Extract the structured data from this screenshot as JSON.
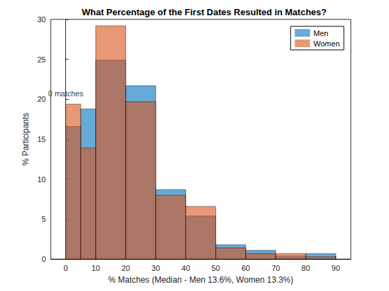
{
  "chart_data": {
    "type": "histogram",
    "title": "What Percentage of the First Dates Resulted in Matches?",
    "xlabel": "% Matches (Median - Men 13.6%, Women 13.3%)",
    "ylabel": "% Participants",
    "bins": [
      0,
      5,
      10,
      20,
      30,
      40,
      50,
      60,
      70,
      80,
      90
    ],
    "series": [
      {
        "name": "Men",
        "color": "#0072bd",
        "values": [
          16.6,
          18.8,
          24.9,
          21.7,
          8.7,
          5.4,
          1.8,
          1.1,
          0.4,
          0.7
        ]
      },
      {
        "name": "Women",
        "color": "#d95319",
        "values": [
          19.4,
          13.9,
          29.2,
          19.7,
          8.0,
          6.6,
          1.4,
          0.7,
          0.7,
          0.3
        ]
      }
    ],
    "xlim": [
      -5,
      95
    ],
    "xticks": [
      0,
      10,
      20,
      30,
      40,
      50,
      60,
      70,
      80,
      90
    ],
    "ylim": [
      0,
      30
    ],
    "yticks": [
      0,
      5,
      10,
      15,
      20,
      25,
      30
    ],
    "grid": false,
    "legend": "northeast",
    "annotations": [
      {
        "text": "0 matches",
        "x": 0,
        "y": 20.7
      }
    ]
  }
}
